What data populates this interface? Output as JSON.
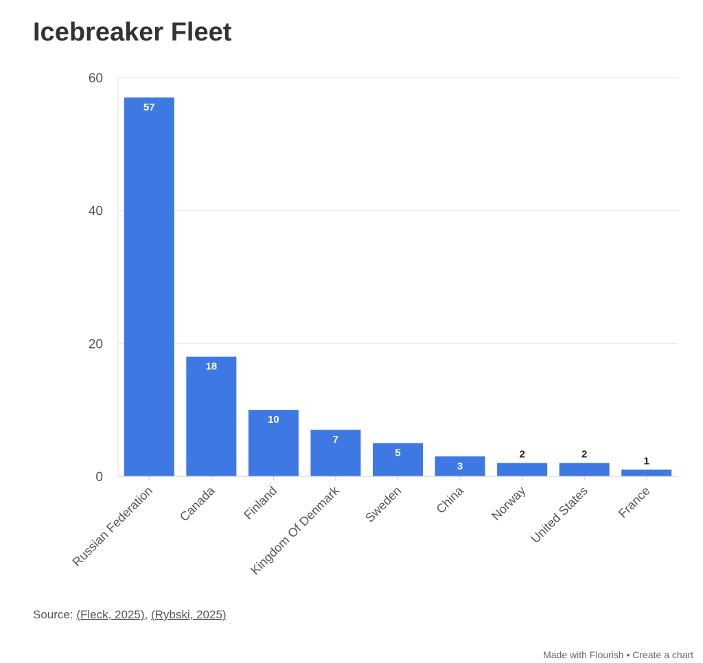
{
  "chart_data": {
    "type": "bar",
    "title": "Icebreaker Fleet",
    "categories": [
      "Russian Federation",
      "Canada",
      "Finland",
      "Kingdom Of Denmark",
      "Sweden",
      "China",
      "Norway",
      "United States",
      "France"
    ],
    "values": [
      57,
      18,
      10,
      7,
      5,
      3,
      2,
      2,
      1
    ],
    "xlabel": "",
    "ylabel": "",
    "ylim": [
      0,
      60
    ],
    "yticks": [
      0,
      20,
      40,
      60
    ],
    "grid": true,
    "bar_color": "#3e78e3"
  },
  "source": {
    "prefix": "Source: ",
    "links": [
      "(Fleck, 2025)",
      "(Rybski, 2025)"
    ],
    "sep": ", "
  },
  "footer": {
    "made": "Made with Flourish",
    "dot": " • ",
    "create": "Create a chart"
  }
}
